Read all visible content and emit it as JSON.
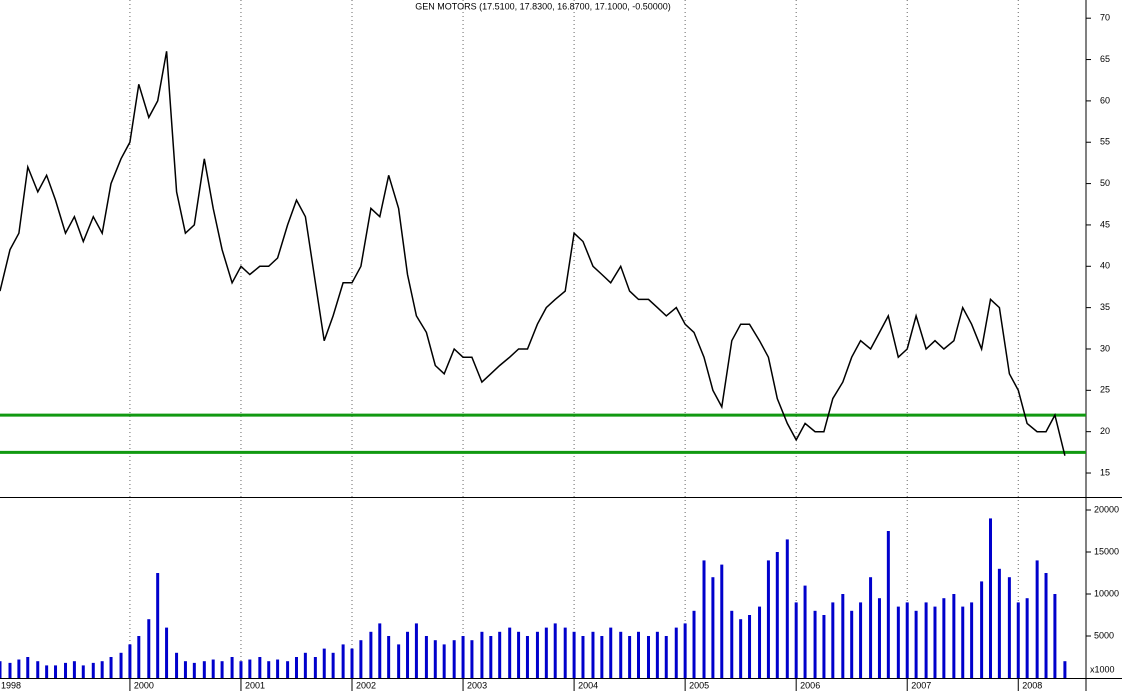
{
  "chart_data": {
    "type": "line",
    "title": "GEN MOTORS (17.5100, 17.8300, 16.8700, 17.1000, -0.50000)",
    "x_start_label": "1998",
    "x": [
      1998.83,
      1998.92,
      1999.0,
      1999.08,
      1999.17,
      1999.25,
      1999.33,
      1999.42,
      1999.5,
      1999.58,
      1999.67,
      1999.75,
      1999.83,
      1999.92,
      2000.0,
      2000.08,
      2000.17,
      2000.25,
      2000.33,
      2000.42,
      2000.5,
      2000.58,
      2000.67,
      2000.75,
      2000.83,
      2000.92,
      2001.0,
      2001.08,
      2001.17,
      2001.25,
      2001.33,
      2001.42,
      2001.5,
      2001.58,
      2001.67,
      2001.75,
      2001.83,
      2001.92,
      2002.0,
      2002.08,
      2002.17,
      2002.25,
      2002.33,
      2002.42,
      2002.5,
      2002.58,
      2002.67,
      2002.75,
      2002.83,
      2002.92,
      2003.0,
      2003.08,
      2003.17,
      2003.25,
      2003.33,
      2003.42,
      2003.5,
      2003.58,
      2003.67,
      2003.75,
      2003.83,
      2003.92,
      2004.0,
      2004.08,
      2004.17,
      2004.25,
      2004.33,
      2004.42,
      2004.5,
      2004.58,
      2004.67,
      2004.75,
      2004.83,
      2004.92,
      2005.0,
      2005.08,
      2005.17,
      2005.25,
      2005.33,
      2005.42,
      2005.5,
      2005.58,
      2005.67,
      2005.75,
      2005.83,
      2005.92,
      2006.0,
      2006.08,
      2006.17,
      2006.25,
      2006.33,
      2006.42,
      2006.5,
      2006.58,
      2006.67,
      2006.75,
      2006.83,
      2006.92,
      2007.0,
      2007.08,
      2007.17,
      2007.25,
      2007.33,
      2007.42,
      2007.5,
      2007.58,
      2007.67,
      2007.75,
      2007.83,
      2007.92,
      2008.0,
      2008.08,
      2008.17,
      2008.25,
      2008.33,
      2008.42
    ],
    "series": [
      {
        "color": "#000000",
        "values": [
          37,
          42,
          44,
          52,
          49,
          51,
          48,
          44,
          46,
          43,
          46,
          44,
          50,
          53,
          55,
          62,
          58,
          60,
          66,
          49,
          44,
          45,
          53,
          47,
          42,
          38,
          40,
          39,
          40,
          40,
          41,
          45,
          48,
          46,
          38,
          31,
          34,
          38,
          38,
          40,
          47,
          46,
          51,
          47,
          39,
          34,
          32,
          28,
          27,
          30,
          29,
          29,
          26,
          27,
          28,
          29,
          30,
          30,
          33,
          35,
          36,
          37,
          44,
          43,
          40,
          39,
          38,
          40,
          37,
          36,
          36,
          35,
          34,
          35,
          33,
          32,
          29,
          25,
          23,
          31,
          33,
          33,
          31,
          29,
          24,
          21,
          19,
          21,
          20,
          20,
          24,
          26,
          29,
          31,
          30,
          32,
          34,
          29,
          30,
          34,
          30,
          31,
          30,
          31,
          35,
          33,
          30,
          36,
          35,
          27,
          25,
          21,
          20,
          20,
          22,
          17.1
        ]
      },
      {
        "color": "#0000cc",
        "axis": "y2",
        "values": [
          2000,
          1800,
          2200,
          2500,
          2000,
          1500,
          1500,
          1800,
          2000,
          1500,
          1800,
          2000,
          2500,
          3000,
          4000,
          5000,
          7000,
          12500,
          6000,
          3000,
          2000,
          1800,
          2000,
          2200,
          2000,
          2500,
          2000,
          2200,
          2500,
          2000,
          2200,
          2000,
          2500,
          3000,
          2500,
          3500,
          3000,
          4000,
          3500,
          4500,
          5500,
          6500,
          5000,
          4000,
          5500,
          6500,
          5000,
          4500,
          4000,
          4500,
          5000,
          4500,
          5500,
          5000,
          5500,
          6000,
          5500,
          5000,
          5500,
          6000,
          6500,
          6000,
          5500,
          5000,
          5500,
          5000,
          6000,
          5500,
          5000,
          5500,
          5000,
          5500,
          5000,
          6000,
          6500,
          8000,
          14000,
          12000,
          13500,
          8000,
          7000,
          7500,
          8500,
          14000,
          15000,
          16500,
          9000,
          11000,
          8000,
          7500,
          9000,
          10000,
          8000,
          9000,
          12000,
          9500,
          17500,
          8500,
          9000,
          8000,
          9000,
          8500,
          9500,
          10000,
          8500,
          9000,
          11500,
          19000,
          13000,
          12000,
          9000,
          9500,
          14000,
          12500,
          10000,
          2000
        ]
      }
    ],
    "levels": [
      22,
      17.5
    ],
    "level_color": "#119911",
    "xlim": [
      1998.83,
      2008.61
    ],
    "xticks": [
      2000,
      2001,
      2002,
      2003,
      2004,
      2005,
      2006,
      2007,
      2008
    ],
    "ylim": [
      12.1,
      72.2
    ],
    "yticks": [
      15,
      20,
      25,
      30,
      35,
      40,
      45,
      50,
      55,
      60,
      65,
      70
    ],
    "y2lim": [
      0,
      21430
    ],
    "y2ticks": [
      5000,
      10000,
      15000,
      20000
    ],
    "y2_unit": "x1000"
  }
}
